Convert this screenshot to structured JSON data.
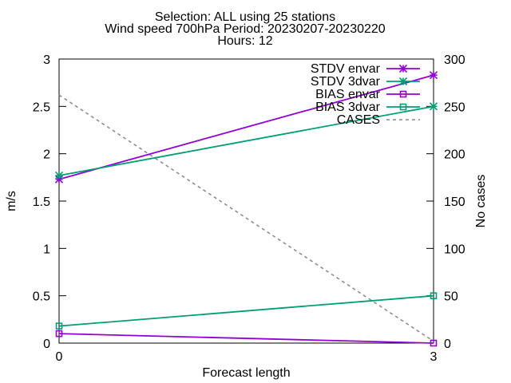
{
  "chart_data": {
    "type": "line",
    "title_lines": [
      "Selection: ALL using    25 stations",
      "Wind speed 700hPa   Period: 20230207-20230220",
      "Hours: 12"
    ],
    "xlabel": "Forecast length",
    "ylabel": "m/s",
    "y2label": "No cases",
    "x": [
      0,
      3
    ],
    "xlim": [
      0,
      3
    ],
    "ylim": [
      0,
      3
    ],
    "y2lim": [
      0,
      300
    ],
    "x_ticks": [
      "0",
      "3"
    ],
    "y_ticks": [
      "0",
      "0.5",
      "1",
      "1.5",
      "2",
      "2.5",
      "3"
    ],
    "y2_ticks": [
      "0",
      "50",
      "100",
      "150",
      "200",
      "250",
      "300"
    ],
    "legend_position": "top-right",
    "series": [
      {
        "name": "STDV envar",
        "values": [
          1.73,
          2.83
        ],
        "color": "#9400d3",
        "marker": "star",
        "axis": "y1"
      },
      {
        "name": "STDV 3dvar",
        "values": [
          1.77,
          2.5
        ],
        "color": "#009e73",
        "marker": "star",
        "axis": "y1"
      },
      {
        "name": "BIAS envar",
        "values": [
          0.1,
          0.0
        ],
        "color": "#9400d3",
        "marker": "square",
        "axis": "y1"
      },
      {
        "name": "BIAS 3dvar",
        "values": [
          0.18,
          0.5
        ],
        "color": "#009e73",
        "marker": "square",
        "axis": "y1"
      },
      {
        "name": "CASES",
        "values": [
          262,
          2
        ],
        "color": "#888888",
        "marker": "none",
        "dashed": true,
        "axis": "y2"
      }
    ]
  }
}
